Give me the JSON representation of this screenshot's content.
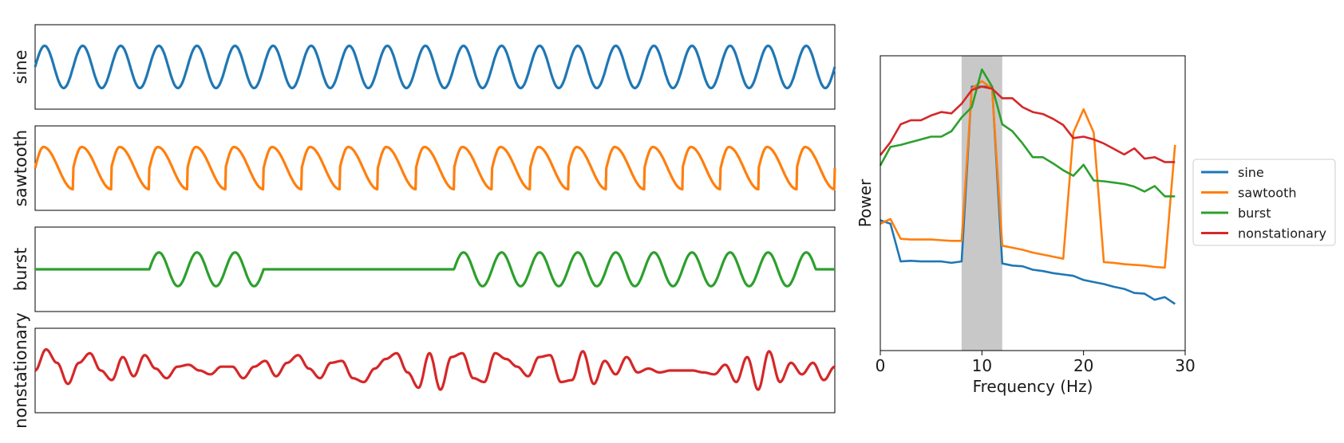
{
  "colors": {
    "sine": "#1f77b4",
    "sawtooth": "#ff7f0e",
    "burst": "#2ca02c",
    "nonstationary": "#d62728",
    "band": "#c8c8c8",
    "axes": "#000000"
  },
  "chart_data": [
    {
      "type": "line",
      "layout": "stacked-panels",
      "panels": [
        {
          "name": "sine",
          "ylabel": "sine",
          "waveform": "sine",
          "cycles": 21,
          "y": [
            0.55,
            -0.55
          ],
          "ylim": [
            -1.1,
            1.1
          ]
        },
        {
          "name": "sawtooth",
          "ylabel": "sawtooth",
          "waveform": "sawtooth",
          "cycles": 21,
          "y": [
            0.55,
            -0.55
          ],
          "ylim": [
            -1.1,
            1.1
          ]
        },
        {
          "name": "burst",
          "ylabel": "burst",
          "waveform": "burst",
          "cycles": 21,
          "bursts": [
            [
              3,
              6
            ],
            [
              11,
              20.5
            ]
          ],
          "y": [
            0.4,
            -0.4
          ],
          "ylim": [
            -1.0,
            1.0
          ]
        },
        {
          "name": "nonstationary",
          "ylabel": "nonstationary",
          "waveform": "nonstationary",
          "points": [
            0.0,
            0.55,
            0.2,
            -0.35,
            0.2,
            0.45,
            0.0,
            -0.25,
            0.35,
            -0.15,
            0.4,
            0.05,
            -0.2,
            0.1,
            0.15,
            0.0,
            -0.1,
            0.1,
            0.1,
            -0.2,
            0.1,
            0.25,
            -0.15,
            0.2,
            0.4,
            0.05,
            -0.2,
            0.2,
            0.25,
            -0.2,
            -0.3,
            0.05,
            0.3,
            0.45,
            -0.05,
            -0.45,
            0.45,
            -0.5,
            0.35,
            0.45,
            -0.2,
            -0.3,
            0.45,
            0.3,
            0.1,
            -0.15,
            0.35,
            0.4,
            -0.3,
            -0.25,
            0.5,
            -0.35,
            0.25,
            -0.1,
            0.35,
            -0.05,
            0.05,
            -0.05,
            0.0,
            0.0,
            0.0,
            -0.05,
            -0.1,
            0.15,
            -0.3,
            0.35,
            -0.5,
            0.5,
            -0.3,
            0.2,
            -0.1,
            0.2,
            -0.25,
            0.1
          ],
          "ylim": [
            -1.1,
            1.1
          ]
        }
      ]
    },
    {
      "type": "line",
      "title": "",
      "xlabel": "Frequency (Hz)",
      "ylabel": "Power",
      "xlim": [
        0,
        30
      ],
      "ylim": [
        -3.3,
        1.0
      ],
      "xticks": [
        "0",
        "10",
        "20",
        "30"
      ],
      "highlight_band": [
        8,
        12
      ],
      "legend": "outside-right",
      "x": [
        0,
        1,
        2,
        3,
        4,
        5,
        6,
        7,
        8,
        9,
        10,
        11,
        12,
        13,
        14,
        15,
        16,
        17,
        18,
        19,
        20,
        21,
        22,
        23,
        24,
        25,
        26,
        27,
        28,
        29
      ],
      "series": [
        {
          "name": "sine",
          "values": [
            -1.4,
            -1.45,
            -2.0,
            -1.99,
            -2.0,
            -2.0,
            -2.0,
            -2.02,
            -2.0,
            0.55,
            0.55,
            0.55,
            -2.03,
            -2.06,
            -2.07,
            -2.12,
            -2.14,
            -2.17,
            -2.19,
            -2.21,
            -2.27,
            -2.3,
            -2.33,
            -2.37,
            -2.4,
            -2.46,
            -2.47,
            -2.56,
            -2.52,
            -2.62
          ]
        },
        {
          "name": "sawtooth",
          "values": [
            -1.45,
            -1.38,
            -1.67,
            -1.68,
            -1.68,
            -1.68,
            -1.69,
            -1.7,
            -1.7,
            0.52,
            0.63,
            0.52,
            -1.77,
            -1.8,
            -1.83,
            -1.87,
            -1.9,
            -1.93,
            -1.96,
            -0.12,
            0.22,
            -0.12,
            -2.01,
            -2.02,
            -2.04,
            -2.05,
            -2.06,
            -2.08,
            -2.09,
            -0.3
          ]
        },
        {
          "name": "burst",
          "values": [
            -0.6,
            -0.33,
            -0.3,
            -0.26,
            -0.22,
            -0.18,
            -0.18,
            -0.1,
            0.1,
            0.25,
            0.8,
            0.55,
            0.0,
            -0.1,
            -0.28,
            -0.48,
            -0.48,
            -0.57,
            -0.67,
            -0.75,
            -0.59,
            -0.82,
            -0.83,
            -0.85,
            -0.87,
            -0.91,
            -0.98,
            -0.9,
            -1.05,
            -1.05
          ]
        },
        {
          "name": "nonstationary",
          "values": [
            -0.45,
            -0.26,
            0.0,
            0.06,
            0.06,
            0.13,
            0.18,
            0.16,
            0.3,
            0.5,
            0.55,
            0.52,
            0.38,
            0.38,
            0.25,
            0.18,
            0.15,
            0.08,
            -0.01,
            -0.2,
            -0.18,
            -0.22,
            -0.28,
            -0.36,
            -0.44,
            -0.35,
            -0.5,
            -0.48,
            -0.55,
            -0.55
          ]
        }
      ]
    }
  ]
}
